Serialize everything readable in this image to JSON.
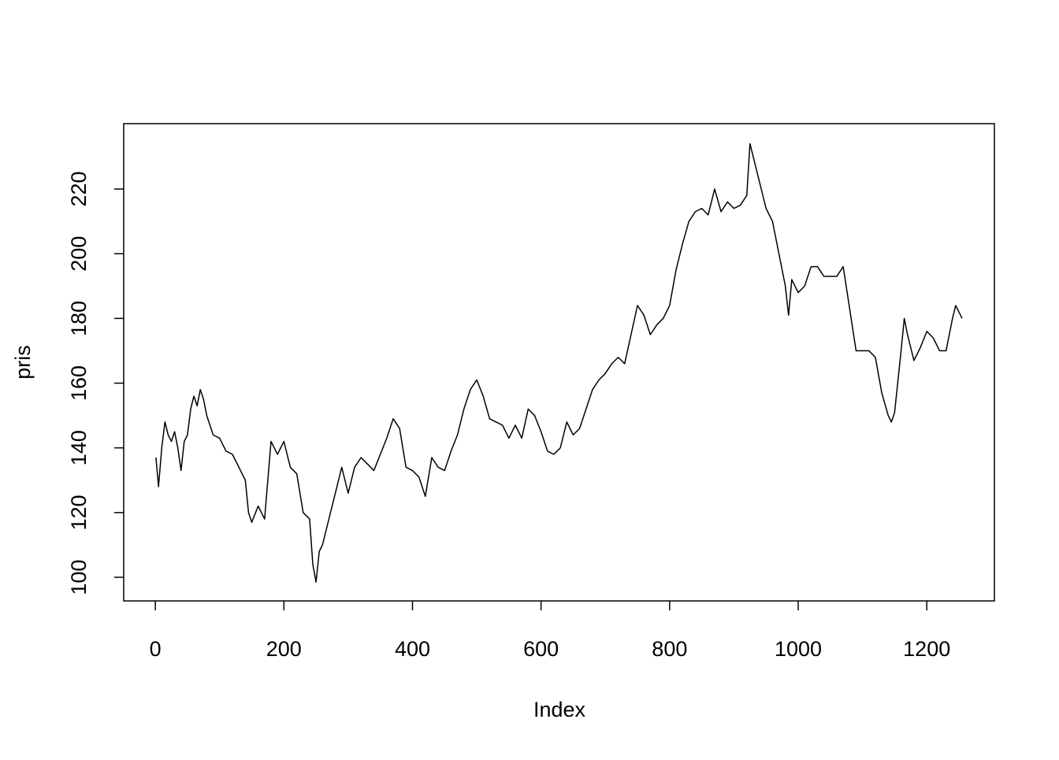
{
  "chart_data": {
    "type": "line",
    "x_label": "Index",
    "y_label": "pris",
    "x": [
      1,
      5,
      10,
      15,
      20,
      25,
      30,
      35,
      40,
      45,
      50,
      55,
      60,
      65,
      70,
      75,
      80,
      90,
      100,
      110,
      120,
      130,
      140,
      145,
      150,
      160,
      170,
      180,
      190,
      200,
      210,
      220,
      230,
      240,
      245,
      250,
      255,
      260,
      270,
      280,
      290,
      300,
      310,
      320,
      330,
      340,
      350,
      360,
      370,
      380,
      390,
      400,
      410,
      420,
      430,
      440,
      450,
      460,
      470,
      480,
      490,
      500,
      510,
      520,
      530,
      540,
      550,
      560,
      570,
      580,
      590,
      600,
      610,
      620,
      630,
      640,
      650,
      660,
      670,
      680,
      690,
      700,
      710,
      720,
      730,
      740,
      750,
      760,
      770,
      780,
      790,
      800,
      810,
      820,
      830,
      840,
      850,
      860,
      870,
      880,
      890,
      900,
      910,
      920,
      925,
      930,
      940,
      950,
      960,
      970,
      980,
      985,
      990,
      1000,
      1010,
      1020,
      1030,
      1040,
      1050,
      1060,
      1070,
      1080,
      1090,
      1100,
      1110,
      1120,
      1130,
      1140,
      1145,
      1150,
      1160,
      1165,
      1170,
      1180,
      1190,
      1200,
      1210,
      1220,
      1230,
      1240,
      1245,
      1255
    ],
    "series": [
      {
        "name": "pris",
        "color": "#000000",
        "values": [
          137,
          128,
          140,
          148,
          144,
          142,
          145,
          140,
          133,
          142,
          144,
          152,
          156,
          153,
          158,
          155,
          150,
          144,
          143,
          139,
          138,
          134,
          130,
          120,
          117,
          122,
          118,
          142,
          138,
          142,
          134,
          132,
          120,
          118,
          104,
          98.5,
          108,
          110,
          118,
          126,
          134,
          126,
          134,
          137,
          135,
          133,
          138,
          143,
          149,
          146,
          134,
          133,
          131,
          125,
          137,
          134,
          133,
          139,
          144,
          152,
          158,
          161,
          156,
          149,
          148,
          147,
          143,
          147,
          143,
          152,
          150,
          145,
          139,
          138,
          140,
          148,
          144,
          146,
          152,
          158,
          161,
          163,
          166,
          168,
          166,
          175,
          184,
          181,
          175,
          178,
          180,
          184,
          195,
          203,
          210,
          213,
          214,
          212,
          220,
          213,
          216,
          214,
          215,
          218,
          234,
          230,
          222,
          214,
          210,
          200,
          190,
          181,
          192,
          188,
          190,
          196,
          196,
          193,
          193,
          193,
          196,
          183,
          170,
          170,
          170,
          168,
          157,
          150,
          148,
          151,
          170,
          180,
          175,
          167,
          171,
          176,
          174,
          170,
          170,
          180,
          184,
          180
        ]
      }
    ],
    "xlim": [
      -49.16,
      1305.16
    ],
    "ylim": [
      92.7,
      240.2
    ],
    "xticks": [
      0,
      200,
      400,
      600,
      800,
      1000,
      1200
    ],
    "yticks": [
      100,
      120,
      140,
      160,
      180,
      200,
      220
    ]
  }
}
